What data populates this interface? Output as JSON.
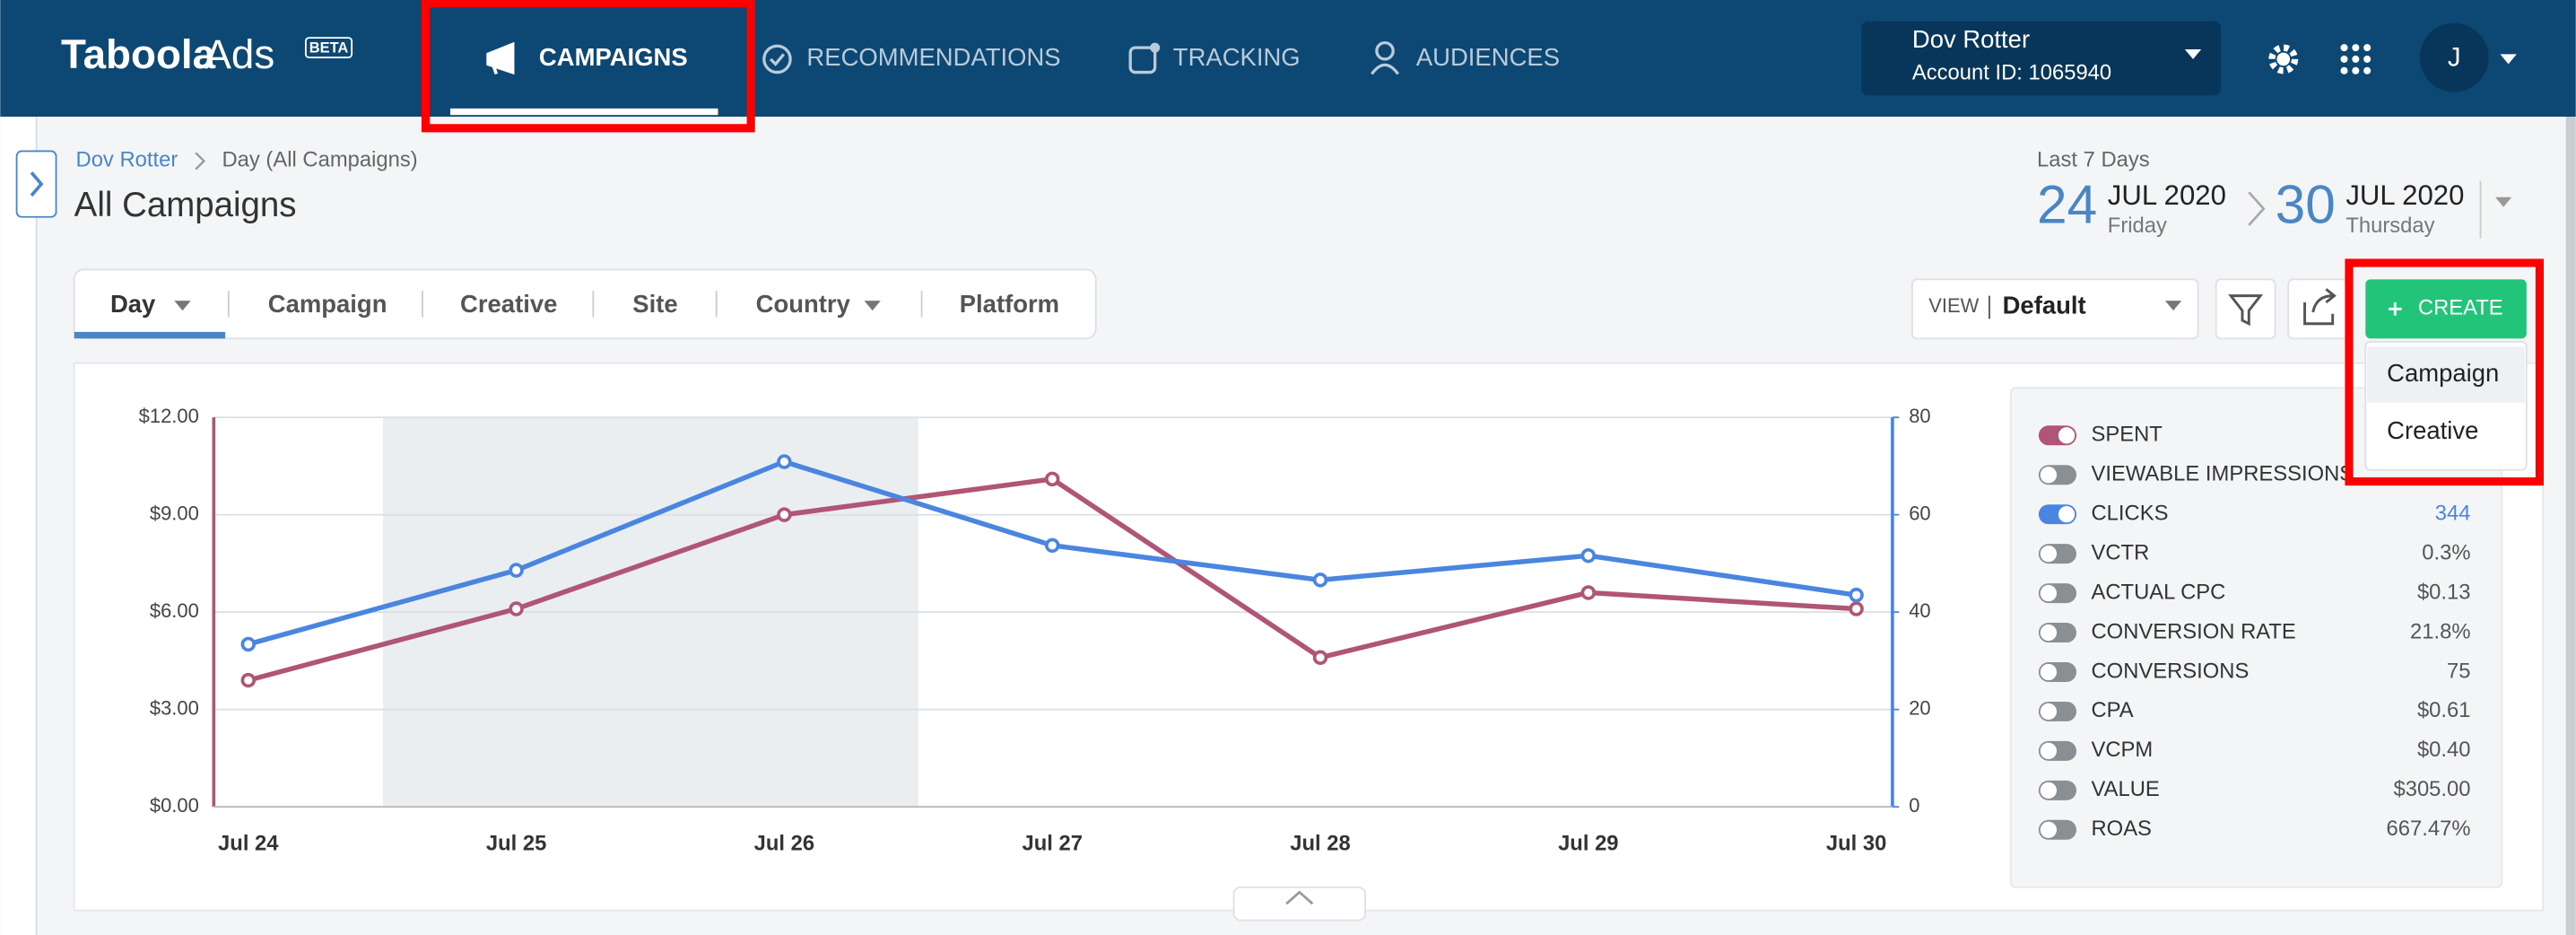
{
  "nav": {
    "logo": "Taboola",
    "logo_suffix": "Ads",
    "badge": "BETA",
    "items": [
      "CAMPAIGNS",
      "RECOMMENDATIONS",
      "TRACKING",
      "AUDIENCES"
    ],
    "account_name": "Dov Rotter",
    "account_id": "Account ID: 1065940",
    "avatar": "J"
  },
  "breadcrumb": [
    "Dov Rotter",
    "Day (All Campaigns)"
  ],
  "page_title": "All Campaigns",
  "date_range": {
    "label": "Last 7 Days",
    "start_day": "24",
    "start_month": "JUL 2020",
    "start_weekday": "Friday",
    "end_day": "30",
    "end_month": "JUL 2020",
    "end_weekday": "Thursday"
  },
  "tabs": [
    "Day",
    "Campaign",
    "Creative",
    "Site",
    "Country",
    "Platform"
  ],
  "view": {
    "label": "VIEW",
    "value": "Default"
  },
  "create": {
    "button": "CREATE",
    "options": [
      "Campaign",
      "Creative"
    ]
  },
  "metrics": [
    {
      "name": "SPENT",
      "on": true,
      "color": "#b05576"
    },
    {
      "name": "VIEWABLE IMPRESSIONS",
      "on": false
    },
    {
      "name": "CLICKS",
      "value": "344",
      "on": true,
      "color": "#4a86e0"
    },
    {
      "name": "VCTR",
      "value": "0.3%",
      "on": false
    },
    {
      "name": "ACTUAL CPC",
      "value": "$0.13",
      "on": false
    },
    {
      "name": "CONVERSION RATE",
      "value": "21.8%",
      "on": false
    },
    {
      "name": "CONVERSIONS",
      "value": "75",
      "on": false
    },
    {
      "name": "CPA",
      "value": "$0.61",
      "on": false
    },
    {
      "name": "VCPM",
      "value": "$0.40",
      "on": false
    },
    {
      "name": "VALUE",
      "value": "$305.00",
      "on": false
    },
    {
      "name": "ROAS",
      "value": "667.47%",
      "on": false
    }
  ],
  "chart_data": {
    "type": "line",
    "categories": [
      "Jul 24",
      "Jul 25",
      "Jul 26",
      "Jul 27",
      "Jul 28",
      "Jul 29",
      "Jul 30"
    ],
    "series": [
      {
        "name": "SPENT",
        "color": "#b05576",
        "axis": "y",
        "values": [
          3.9,
          6.1,
          9.0,
          10.1,
          4.6,
          6.6,
          6.1
        ]
      },
      {
        "name": "CLICKS",
        "color": "#4a86e0",
        "axis": "y2",
        "values": [
          33.4,
          48.6,
          70.9,
          53.7,
          46.6,
          51.6,
          43.5
        ]
      }
    ],
    "ylim": [
      0,
      12
    ],
    "yticks": [
      {
        "value": 0,
        "label": "$0.00"
      },
      {
        "value": 3,
        "label": "$3.00"
      },
      {
        "value": 6,
        "label": "$6.00"
      },
      {
        "value": 9,
        "label": "$9.00"
      },
      {
        "value": 12,
        "label": "$12.00"
      }
    ],
    "y2lim": [
      0,
      80
    ],
    "y2ticks": [
      0,
      20,
      40,
      60,
      80
    ],
    "grid": true
  }
}
